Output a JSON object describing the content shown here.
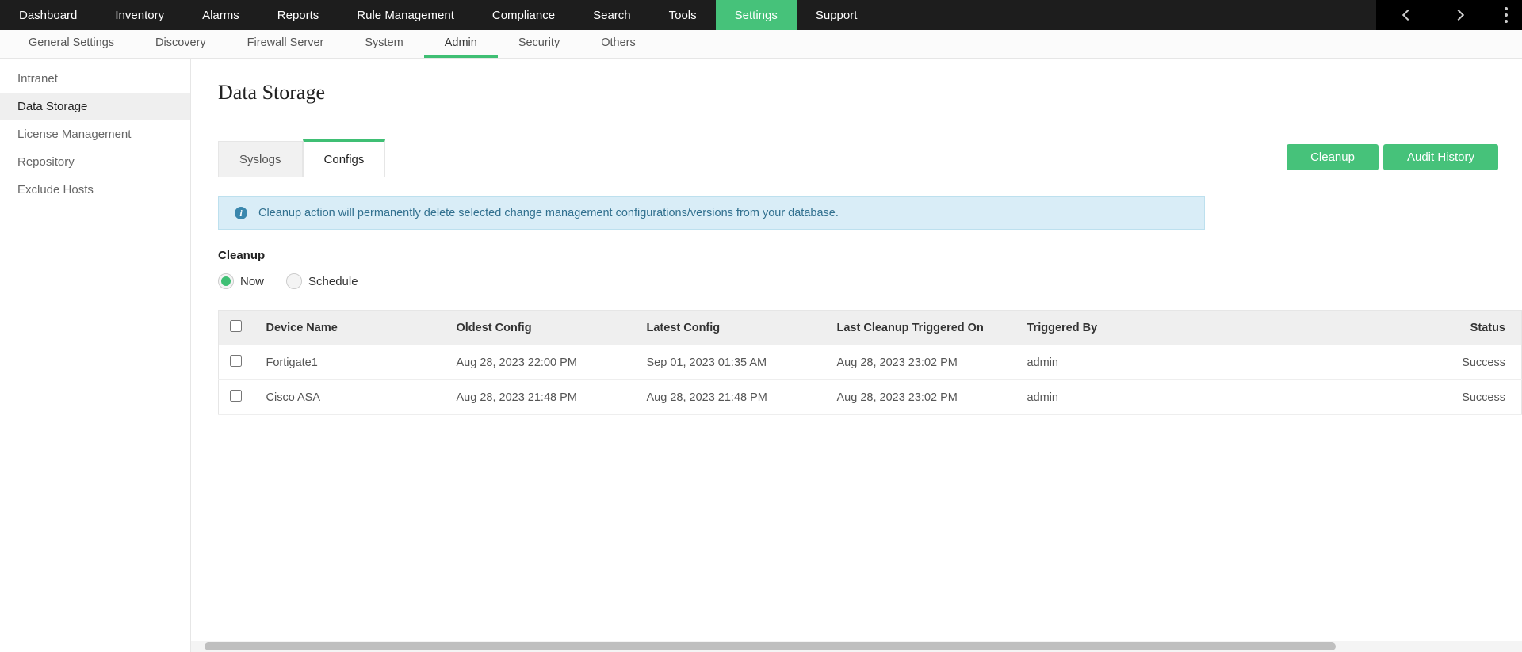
{
  "colors": {
    "accent": "#46c27a",
    "accent_border": "#3fbf74",
    "topnav_bg": "#1d1d1d",
    "info_bg": "#d9edf7",
    "info_border": "#bde0ee",
    "info_text": "#31708f"
  },
  "topnav": {
    "items": [
      {
        "label": "Dashboard",
        "active": false
      },
      {
        "label": "Inventory",
        "active": false
      },
      {
        "label": "Alarms",
        "active": false
      },
      {
        "label": "Reports",
        "active": false
      },
      {
        "label": "Rule Management",
        "active": false
      },
      {
        "label": "Compliance",
        "active": false
      },
      {
        "label": "Search",
        "active": false
      },
      {
        "label": "Tools",
        "active": false
      },
      {
        "label": "Settings",
        "active": true
      },
      {
        "label": "Support",
        "active": false
      }
    ]
  },
  "subnav": {
    "items": [
      {
        "label": "General Settings",
        "active": false
      },
      {
        "label": "Discovery",
        "active": false
      },
      {
        "label": "Firewall Server",
        "active": false
      },
      {
        "label": "System",
        "active": false
      },
      {
        "label": "Admin",
        "active": true
      },
      {
        "label": "Security",
        "active": false
      },
      {
        "label": "Others",
        "active": false
      }
    ]
  },
  "sidebar": {
    "items": [
      {
        "label": "Intranet",
        "active": false
      },
      {
        "label": "Data Storage",
        "active": true
      },
      {
        "label": "License Management",
        "active": false
      },
      {
        "label": "Repository",
        "active": false
      },
      {
        "label": "Exclude Hosts",
        "active": false
      }
    ]
  },
  "page": {
    "title": "Data Storage",
    "tabs": [
      {
        "label": "Syslogs",
        "active": false
      },
      {
        "label": "Configs",
        "active": true
      }
    ],
    "actions": {
      "cleanup": "Cleanup",
      "audit_history": "Audit History"
    },
    "info_banner": "Cleanup action will permanently delete selected change management configurations/versions from your database.",
    "cleanup_section": {
      "heading": "Cleanup",
      "options": [
        {
          "label": "Now",
          "checked": true
        },
        {
          "label": "Schedule",
          "checked": false
        }
      ]
    },
    "table": {
      "columns": [
        "",
        "Device Name",
        "Oldest Config",
        "Latest Config",
        "Last Cleanup Triggered On",
        "Triggered By",
        "Status"
      ],
      "rows": [
        {
          "checked": false,
          "device": "Fortigate1",
          "oldest": "Aug 28, 2023 22:00 PM",
          "latest": "Sep 01, 2023 01:35 AM",
          "triggered_on": "Aug 28, 2023 23:02 PM",
          "triggered_by": "admin",
          "status": "Success"
        },
        {
          "checked": false,
          "device": "Cisco ASA",
          "oldest": "Aug 28, 2023 21:48 PM",
          "latest": "Aug 28, 2023 21:48 PM",
          "triggered_on": "Aug 28, 2023 23:02 PM",
          "triggered_by": "admin",
          "status": "Success"
        }
      ]
    }
  }
}
